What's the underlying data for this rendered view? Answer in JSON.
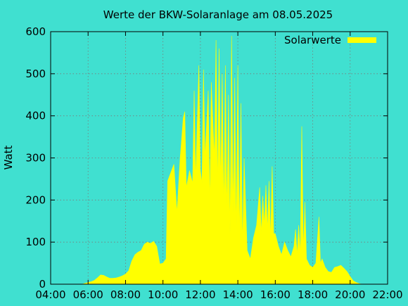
{
  "chart_data": {
    "type": "area",
    "title": "Werte der BKW-Solaranlage am 08.05.2025",
    "xlabel": "",
    "ylabel": "Watt",
    "x_ticks": [
      "04:00",
      "06:00",
      "08:00",
      "10:00",
      "12:00",
      "14:00",
      "16:00",
      "18:00",
      "20:00",
      "22:00"
    ],
    "xlim": [
      "04:00",
      "22:00"
    ],
    "y_ticks": [
      0,
      100,
      200,
      300,
      400,
      500,
      600
    ],
    "ylim": [
      0,
      600
    ],
    "grid": true,
    "legend_position": "top-right",
    "colors": {
      "background": "#40e0d0",
      "series": "#ffff00",
      "axes": "#000000",
      "grid": "#7a7a7a"
    },
    "series": [
      {
        "name": "Solarwerte",
        "points": [
          [
            "05:40",
            0
          ],
          [
            "05:50",
            2
          ],
          [
            "06:00",
            4
          ],
          [
            "06:10",
            6
          ],
          [
            "06:20",
            9
          ],
          [
            "06:30",
            15
          ],
          [
            "06:40",
            22
          ],
          [
            "06:50",
            21
          ],
          [
            "07:00",
            17
          ],
          [
            "07:10",
            14
          ],
          [
            "07:20",
            14
          ],
          [
            "07:30",
            15
          ],
          [
            "07:40",
            17
          ],
          [
            "07:50",
            20
          ],
          [
            "08:00",
            24
          ],
          [
            "08:10",
            32
          ],
          [
            "08:20",
            55
          ],
          [
            "08:30",
            70
          ],
          [
            "08:40",
            76
          ],
          [
            "08:50",
            80
          ],
          [
            "09:00",
            95
          ],
          [
            "09:10",
            100
          ],
          [
            "09:20",
            97
          ],
          [
            "09:30",
            102
          ],
          [
            "09:40",
            90
          ],
          [
            "09:50",
            48
          ],
          [
            "10:00",
            50
          ],
          [
            "10:10",
            60
          ],
          [
            "10:15",
            245
          ],
          [
            "10:25",
            265
          ],
          [
            "10:35",
            285
          ],
          [
            "10:45",
            170
          ],
          [
            "10:55",
            300
          ],
          [
            "11:05",
            395
          ],
          [
            "11:10",
            410
          ],
          [
            "11:15",
            230
          ],
          [
            "11:25",
            270
          ],
          [
            "11:35",
            240
          ],
          [
            "11:40",
            460
          ],
          [
            "11:45",
            250
          ],
          [
            "11:55",
            520
          ],
          [
            "12:00",
            270
          ],
          [
            "12:05",
            240
          ],
          [
            "12:10",
            510
          ],
          [
            "12:15",
            300
          ],
          [
            "12:25",
            460
          ],
          [
            "12:30",
            190
          ],
          [
            "12:35",
            480
          ],
          [
            "12:45",
            300
          ],
          [
            "12:50",
            580
          ],
          [
            "12:55",
            230
          ],
          [
            "13:00",
            560
          ],
          [
            "13:05",
            240
          ],
          [
            "13:10",
            500
          ],
          [
            "13:15",
            180
          ],
          [
            "13:20",
            520
          ],
          [
            "13:25",
            170
          ],
          [
            "13:30",
            450
          ],
          [
            "13:35",
            120
          ],
          [
            "13:40",
            590
          ],
          [
            "13:45",
            170
          ],
          [
            "13:50",
            490
          ],
          [
            "13:55",
            120
          ],
          [
            "14:00",
            520
          ],
          [
            "14:05",
            110
          ],
          [
            "14:10",
            430
          ],
          [
            "14:15",
            90
          ],
          [
            "14:20",
            300
          ],
          [
            "14:30",
            80
          ],
          [
            "14:40",
            60
          ],
          [
            "14:50",
            110
          ],
          [
            "15:00",
            140
          ],
          [
            "15:10",
            230
          ],
          [
            "15:15",
            120
          ],
          [
            "15:20",
            210
          ],
          [
            "15:25",
            140
          ],
          [
            "15:30",
            235
          ],
          [
            "15:35",
            130
          ],
          [
            "15:40",
            245
          ],
          [
            "15:45",
            110
          ],
          [
            "15:50",
            280
          ],
          [
            "15:55",
            120
          ],
          [
            "16:00",
            120
          ],
          [
            "16:10",
            90
          ],
          [
            "16:20",
            70
          ],
          [
            "16:30",
            100
          ],
          [
            "16:40",
            80
          ],
          [
            "16:50",
            65
          ],
          [
            "17:00",
            90
          ],
          [
            "17:05",
            130
          ],
          [
            "17:10",
            70
          ],
          [
            "17:15",
            140
          ],
          [
            "17:20",
            70
          ],
          [
            "17:25",
            375
          ],
          [
            "17:30",
            80
          ],
          [
            "17:35",
            195
          ],
          [
            "17:40",
            60
          ],
          [
            "17:50",
            45
          ],
          [
            "18:00",
            40
          ],
          [
            "18:10",
            50
          ],
          [
            "18:20",
            160
          ],
          [
            "18:25",
            50
          ],
          [
            "18:30",
            60
          ],
          [
            "18:40",
            40
          ],
          [
            "18:50",
            30
          ],
          [
            "19:00",
            28
          ],
          [
            "19:10",
            40
          ],
          [
            "19:20",
            42
          ],
          [
            "19:30",
            45
          ],
          [
            "19:40",
            38
          ],
          [
            "19:50",
            30
          ],
          [
            "20:00",
            18
          ],
          [
            "20:10",
            8
          ],
          [
            "20:20",
            4
          ],
          [
            "20:30",
            1
          ],
          [
            "20:40",
            0
          ]
        ]
      }
    ]
  }
}
